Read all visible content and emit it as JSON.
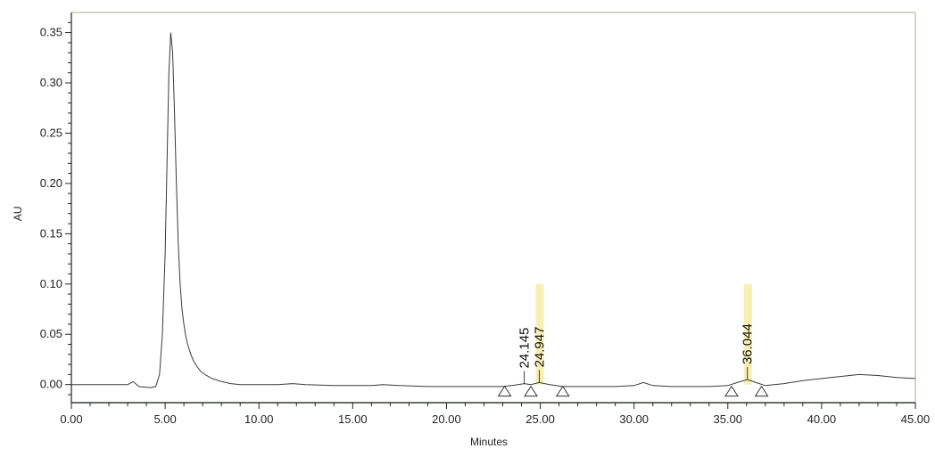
{
  "chart_data": {
    "type": "line",
    "title": "",
    "xlabel": "Minutes",
    "ylabel": "AU",
    "xlim": [
      0,
      45
    ],
    "ylim": [
      -0.018,
      0.37
    ],
    "xticks": [
      "0.00",
      "5.00",
      "10.00",
      "15.00",
      "20.00",
      "25.00",
      "30.00",
      "35.00",
      "40.00",
      "45.00"
    ],
    "yticks": [
      "0.00",
      "0.05",
      "0.10",
      "0.15",
      "0.20",
      "0.25",
      "0.30",
      "0.35"
    ],
    "series": [
      {
        "x": [
          0,
          1.5,
          3.0,
          3.3,
          3.6,
          4.2,
          4.5,
          4.7,
          4.85,
          5.0,
          5.1,
          5.2,
          5.3,
          5.4,
          5.5,
          5.6,
          5.7,
          5.8,
          5.9,
          6.0,
          6.1,
          6.2,
          6.35,
          6.5,
          6.7,
          6.9,
          7.2,
          7.5,
          8.0,
          8.5,
          9.0,
          10.0,
          11.0,
          11.8,
          12.5,
          14.0,
          16.0,
          16.6,
          17.5,
          19.0,
          20.0,
          21.0,
          22.0,
          23.0,
          23.5,
          24.145,
          24.5,
          24.947,
          25.5,
          26.2,
          27.0,
          28.0,
          29.0,
          30.0,
          30.5,
          31.0,
          32.0,
          33.0,
          34.0,
          35.0,
          35.5,
          36.044,
          36.5,
          37.0,
          38.0,
          39.0,
          40.0,
          41.0,
          42.0,
          43.0,
          44.0,
          45.0
        ],
        "y": [
          0.0,
          0.0,
          0.0,
          0.003,
          -0.002,
          -0.003,
          -0.002,
          0.01,
          0.05,
          0.13,
          0.22,
          0.31,
          0.35,
          0.33,
          0.27,
          0.2,
          0.14,
          0.1,
          0.075,
          0.06,
          0.048,
          0.04,
          0.031,
          0.024,
          0.018,
          0.013,
          0.009,
          0.006,
          0.003,
          0.001,
          0.0,
          0.0,
          0.0,
          0.001,
          0.0,
          -0.001,
          -0.001,
          0.0,
          -0.001,
          -0.002,
          -0.002,
          -0.002,
          -0.002,
          -0.002,
          -0.001,
          0.001,
          0.0,
          0.002,
          0.0,
          -0.002,
          -0.002,
          -0.002,
          -0.002,
          -0.001,
          0.002,
          -0.001,
          -0.002,
          -0.002,
          -0.002,
          -0.001,
          0.002,
          0.005,
          0.002,
          -0.001,
          0.001,
          0.004,
          0.006,
          0.008,
          0.01,
          0.009,
          0.007,
          0.006
        ]
      }
    ],
    "peak_labels": [
      {
        "label": "24.145",
        "x": 24.145,
        "y": 0.001
      },
      {
        "label": "24.947",
        "x": 24.947,
        "y": 0.002
      },
      {
        "label": "36.044",
        "x": 36.044,
        "y": 0.005
      }
    ],
    "integration_markers_x": [
      23.1,
      24.5,
      26.2,
      35.2,
      36.8
    ],
    "colors": {
      "trace": "#3a3a3a",
      "axis": "#222222",
      "frame_top": "#b0a890",
      "baseline": "#7ab36a",
      "highlight": "#f4eda8"
    }
  }
}
